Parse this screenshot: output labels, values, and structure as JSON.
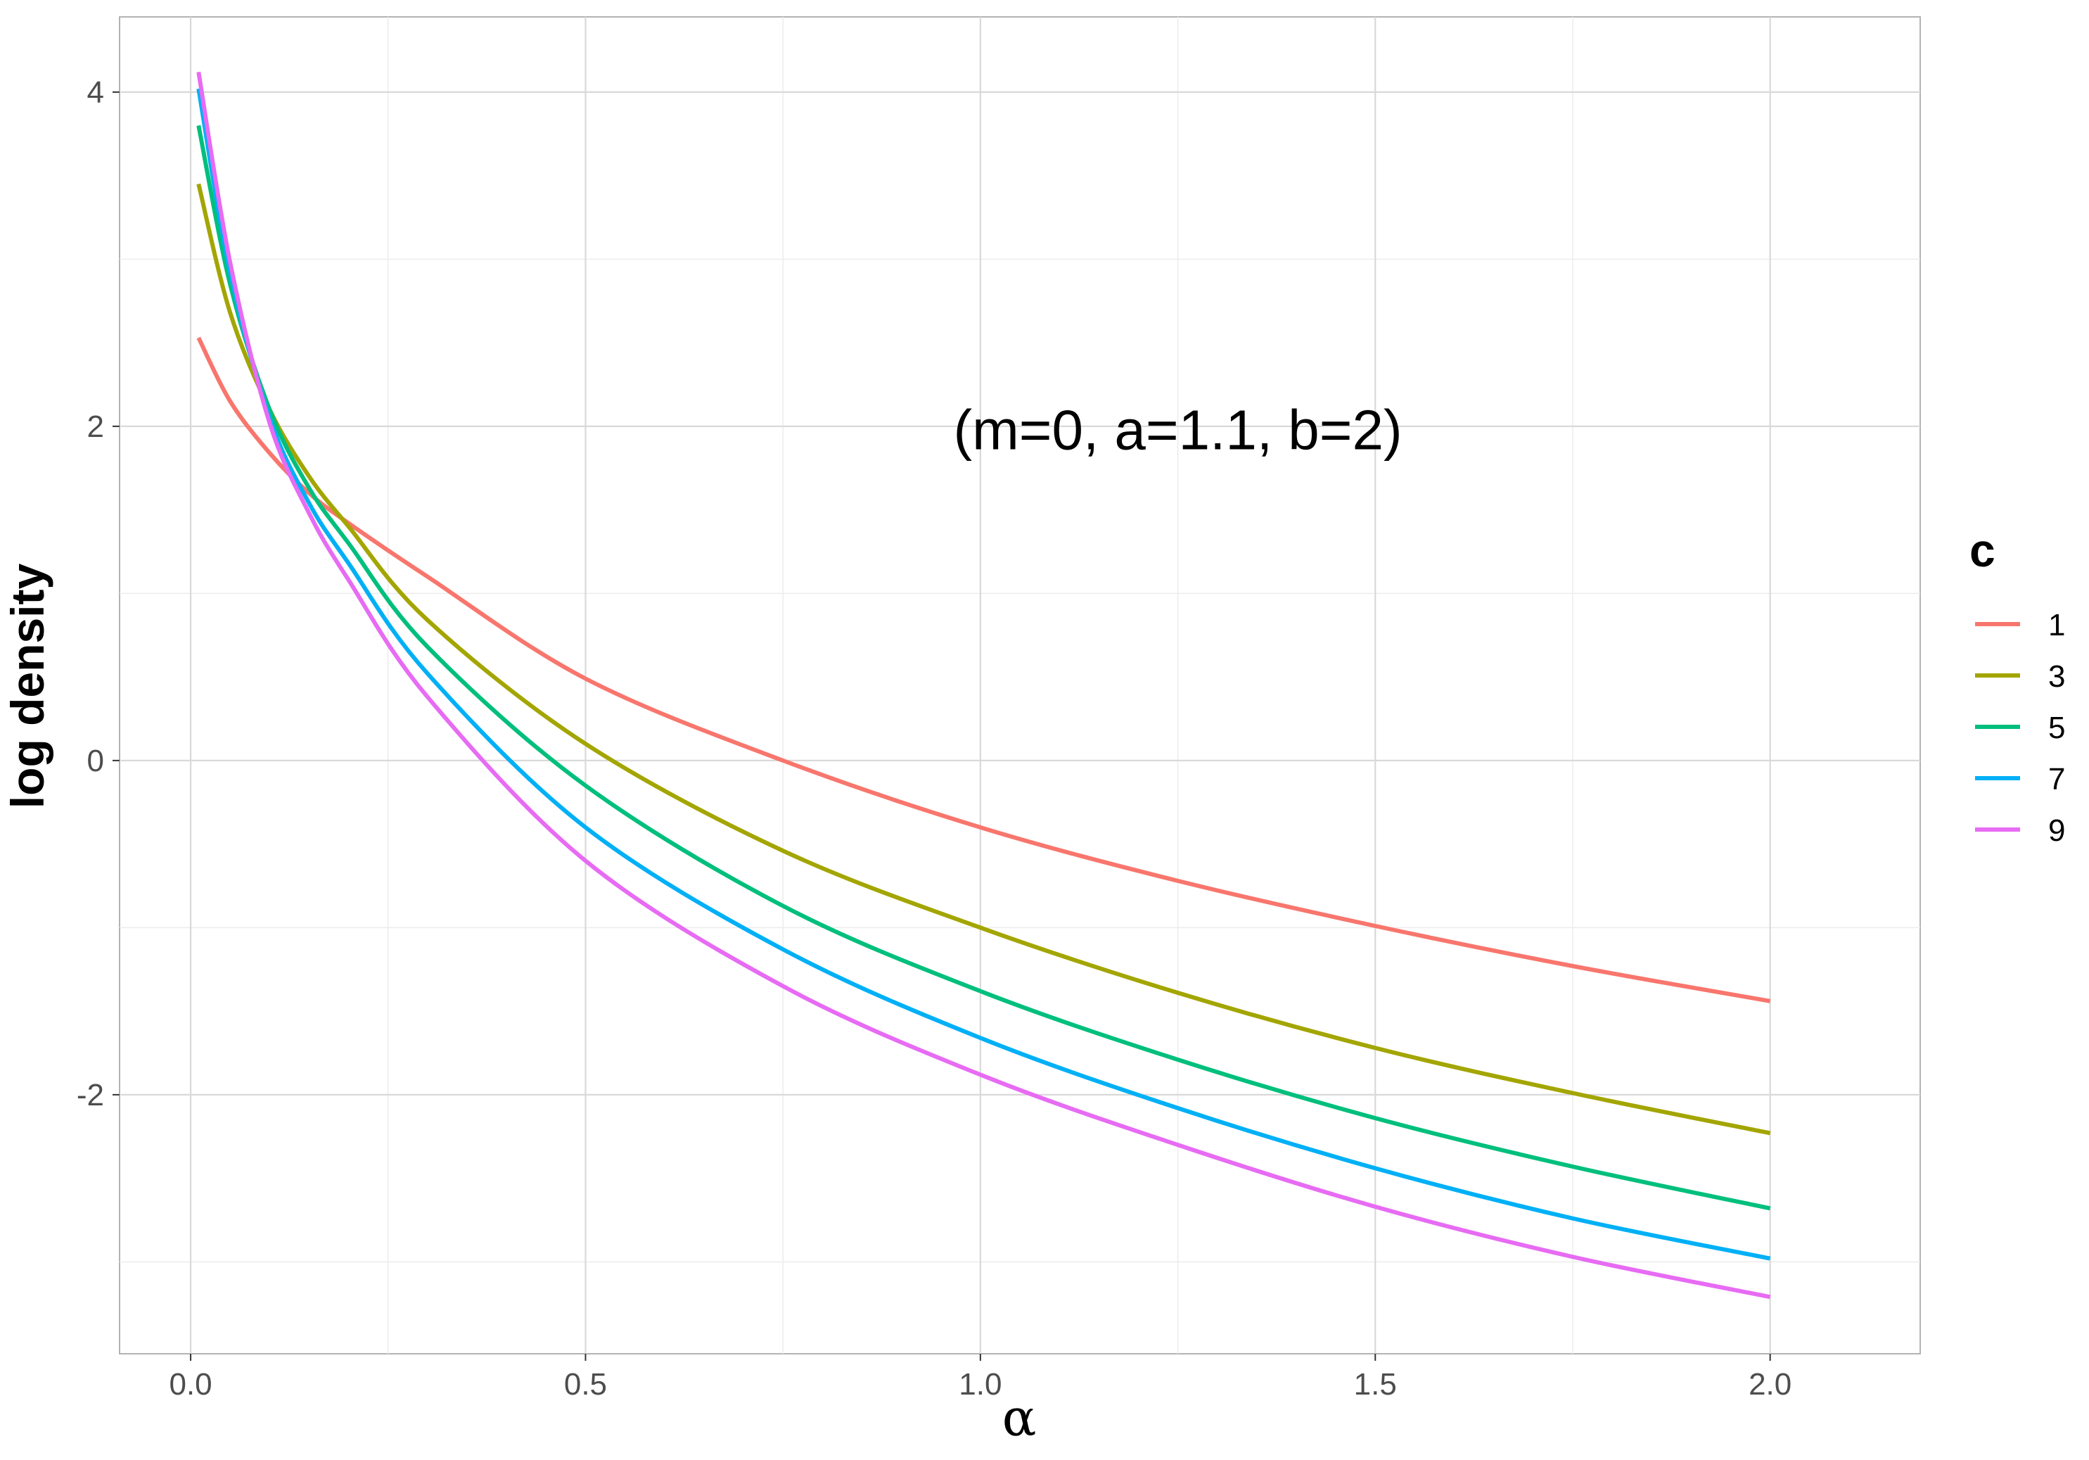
{
  "chart_data": {
    "type": "line",
    "title": "",
    "xlabel": "α",
    "ylabel": "log density",
    "xlim": [
      -0.09,
      2.19
    ],
    "ylim": [
      -3.55,
      4.45
    ],
    "x_ticks": [
      0.0,
      0.5,
      1.0,
      1.5,
      2.0
    ],
    "x_tick_labels": [
      "0.0",
      "0.5",
      "1.0",
      "1.5",
      "2.0"
    ],
    "y_ticks": [
      -2,
      0,
      2,
      4
    ],
    "y_tick_labels": [
      "-2",
      "0",
      "2",
      "4"
    ],
    "grid": true,
    "annotation": "(m=0, a=1.1, b=2)",
    "annotation_position": [
      1.25,
      1.98
    ],
    "legend": {
      "title": "c",
      "placement": "right"
    },
    "series": [
      {
        "name": "1",
        "color": "#F8766D",
        "x": [
          0.01,
          0.05,
          0.1,
          0.15,
          0.2,
          0.3,
          0.5,
          0.75,
          1.0,
          1.25,
          1.5,
          1.75,
          2.0
        ],
        "values": [
          2.53,
          2.15,
          1.84,
          1.6,
          1.42,
          1.1,
          0.49,
          0.0,
          -0.4,
          -0.72,
          -0.99,
          -1.23,
          -1.44
        ]
      },
      {
        "name": "3",
        "color": "#A3A500",
        "x": [
          0.01,
          0.05,
          0.1,
          0.15,
          0.2,
          0.3,
          0.5,
          0.75,
          1.0,
          1.25,
          1.5,
          1.75,
          2.0
        ],
        "values": [
          3.45,
          2.68,
          2.1,
          1.7,
          1.4,
          0.84,
          0.1,
          -0.54,
          -1.0,
          -1.39,
          -1.72,
          -1.99,
          -2.23
        ]
      },
      {
        "name": "5",
        "color": "#00BF7D",
        "x": [
          0.01,
          0.05,
          0.1,
          0.15,
          0.2,
          0.3,
          0.5,
          0.75,
          1.0,
          1.25,
          1.5,
          1.75,
          2.0
        ],
        "values": [
          3.8,
          2.85,
          2.1,
          1.63,
          1.3,
          0.68,
          -0.15,
          -0.87,
          -1.38,
          -1.79,
          -2.14,
          -2.43,
          -2.68
        ]
      },
      {
        "name": "7",
        "color": "#00B0F6",
        "x": [
          0.01,
          0.05,
          0.1,
          0.15,
          0.2,
          0.3,
          0.5,
          0.75,
          1.0,
          1.25,
          1.5,
          1.75,
          2.0
        ],
        "values": [
          4.02,
          2.92,
          2.05,
          1.54,
          1.18,
          0.52,
          -0.4,
          -1.13,
          -1.66,
          -2.08,
          -2.44,
          -2.74,
          -2.98
        ]
      },
      {
        "name": "9",
        "color": "#E76BF3",
        "x": [
          0.01,
          0.05,
          0.1,
          0.15,
          0.2,
          0.3,
          0.5,
          0.75,
          1.0,
          1.25,
          1.5,
          1.75,
          2.0
        ],
        "values": [
          4.12,
          2.98,
          2.02,
          1.48,
          1.08,
          0.38,
          -0.6,
          -1.35,
          -1.88,
          -2.3,
          -2.67,
          -2.97,
          -3.21
        ]
      }
    ]
  }
}
